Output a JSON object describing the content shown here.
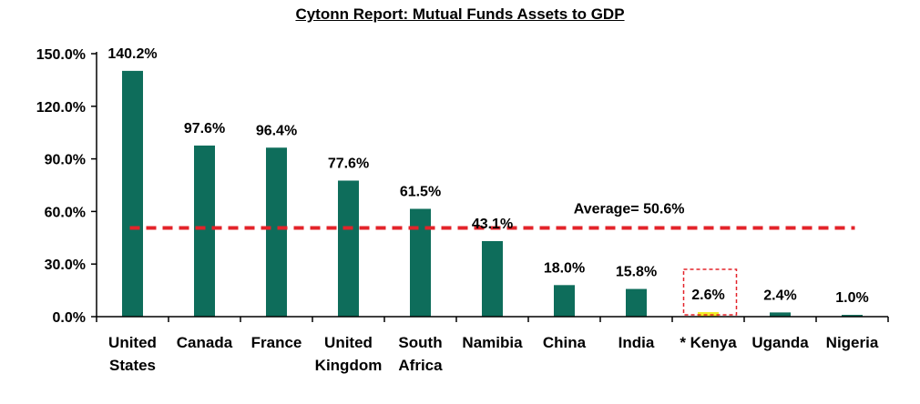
{
  "chart_data": {
    "type": "bar",
    "title": "Cytonn Report: Mutual Funds Assets to GDP",
    "xlabel": "",
    "ylabel": "",
    "ylim": [
      0,
      150
    ],
    "y_ticks": [
      0,
      30,
      60,
      90,
      120,
      150
    ],
    "y_tick_labels": [
      "0.0%",
      "30.0%",
      "60.0%",
      "90.0%",
      "120.0%",
      "150.0%"
    ],
    "categories": [
      "United States",
      "Canada",
      "France",
      "United Kingdom",
      "South Africa",
      "Namibia",
      "China",
      "India",
      "* Kenya",
      "Uganda",
      "Nigeria"
    ],
    "category_lines": [
      [
        "United",
        "States"
      ],
      [
        "Canada"
      ],
      [
        "France"
      ],
      [
        "United",
        "Kingdom"
      ],
      [
        "South",
        "Africa"
      ],
      [
        "Namibia"
      ],
      [
        "China"
      ],
      [
        "India"
      ],
      [
        "* Kenya"
      ],
      [
        "Uganda"
      ],
      [
        "Nigeria"
      ]
    ],
    "values": [
      140.2,
      97.6,
      96.4,
      77.6,
      61.5,
      43.1,
      18.0,
      15.8,
      2.6,
      2.4,
      1.0
    ],
    "value_labels": [
      "140.2%",
      "97.6%",
      "96.4%",
      "77.6%",
      "61.5%",
      "43.1%",
      "18.0%",
      "15.8%",
      "2.6%",
      "2.4%",
      "1.0%"
    ],
    "highlight_index": 8,
    "average": {
      "value": 50.6,
      "label": "Average= 50.6%"
    },
    "grid": false,
    "legend": "none",
    "colors": {
      "bar": "#0E6D5B",
      "highlight_bar": "#F2EE2A",
      "average_line": "#E3232A",
      "highlight_box": "#E3232A",
      "axis": "#000000"
    }
  }
}
